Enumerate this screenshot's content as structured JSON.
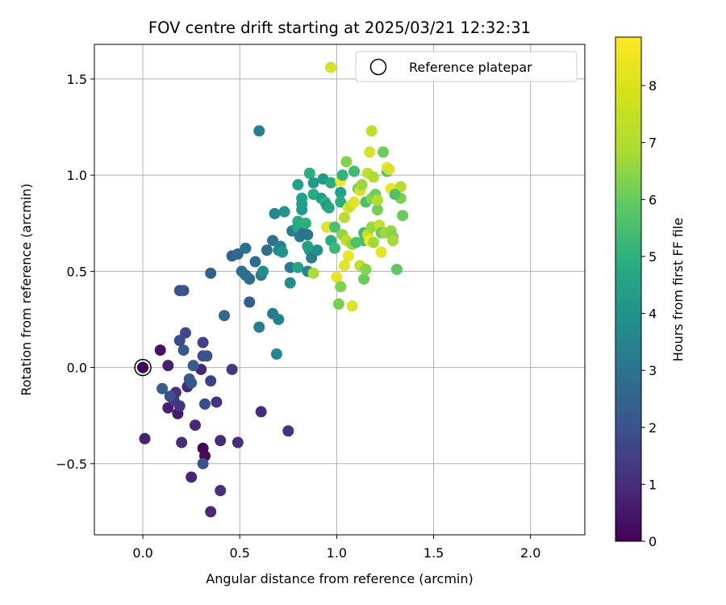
{
  "chart_data": {
    "type": "scatter",
    "title": "FOV centre drift starting at 2025/03/21 12:32:31",
    "xlabel": "Angular distance from reference (arcmin)",
    "ylabel": "Rotation from reference (arcmin)",
    "xlim": [
      -0.25,
      2.28
    ],
    "ylim": [
      -0.87,
      1.68
    ],
    "xticks": [
      0.0,
      0.5,
      1.0,
      1.5,
      2.0
    ],
    "xtick_labels": [
      "0.0",
      "0.5",
      "1.0",
      "1.5",
      "2.0"
    ],
    "yticks": [
      -0.5,
      0.0,
      0.5,
      1.0,
      1.5
    ],
    "ytick_labels": [
      "−0.5",
      "0.0",
      "0.5",
      "1.0",
      "1.5"
    ],
    "grid": true,
    "colormap": "viridis",
    "colorbar": {
      "label": "Hours from first FF file",
      "range": [
        0,
        8.85
      ],
      "ticks": [
        0,
        1,
        2,
        3,
        4,
        5,
        6,
        7,
        8
      ],
      "tick_labels": [
        "0",
        "1",
        "2",
        "3",
        "4",
        "5",
        "6",
        "7",
        "8"
      ]
    },
    "legend": {
      "position": "top-right",
      "entries": [
        {
          "label": "Reference platepar",
          "marker": "open-circle"
        }
      ]
    },
    "reference_point": {
      "x": 0.0,
      "y": 0.0,
      "hours": 0.0
    },
    "points": [
      {
        "x": 0.0,
        "y": 0.0,
        "h": 0.3
      },
      {
        "x": 0.09,
        "y": 0.09,
        "h": 0.4
      },
      {
        "x": 0.13,
        "y": 0.01,
        "h": 0.7
      },
      {
        "x": 0.01,
        "y": -0.37,
        "h": 0.8
      },
      {
        "x": 0.13,
        "y": -0.21,
        "h": 0.7
      },
      {
        "x": 0.18,
        "y": -0.24,
        "h": 0.6
      },
      {
        "x": 0.31,
        "y": -0.42,
        "h": 0.1
      },
      {
        "x": 0.32,
        "y": -0.46,
        "h": 0.2
      },
      {
        "x": 0.25,
        "y": -0.57,
        "h": 0.9
      },
      {
        "x": 0.35,
        "y": -0.75,
        "h": 1.0
      },
      {
        "x": 0.4,
        "y": -0.64,
        "h": 1.2
      },
      {
        "x": 0.2,
        "y": -0.39,
        "h": 1.1
      },
      {
        "x": 0.27,
        "y": -0.3,
        "h": 1.0
      },
      {
        "x": 0.3,
        "y": -0.01,
        "h": 0.9
      },
      {
        "x": 0.23,
        "y": -0.1,
        "h": 1.1
      },
      {
        "x": 0.16,
        "y": -0.17,
        "h": 1.5
      },
      {
        "x": 0.17,
        "y": -0.13,
        "h": 1.3
      },
      {
        "x": 0.19,
        "y": -0.2,
        "h": 1.4
      },
      {
        "x": 0.4,
        "y": -0.38,
        "h": 1.1
      },
      {
        "x": 0.38,
        "y": -0.18,
        "h": 1.3
      },
      {
        "x": 0.49,
        "y": -0.39,
        "h": 1.2
      },
      {
        "x": 0.61,
        "y": -0.23,
        "h": 1.1
      },
      {
        "x": 0.75,
        "y": -0.33,
        "h": 1.3
      },
      {
        "x": 0.46,
        "y": -0.01,
        "h": 1.4
      },
      {
        "x": 0.35,
        "y": -0.07,
        "h": 1.7
      },
      {
        "x": 0.32,
        "y": -0.19,
        "h": 2.1
      },
      {
        "x": 0.31,
        "y": -0.5,
        "h": 2.3
      },
      {
        "x": 0.14,
        "y": -0.15,
        "h": 2.2
      },
      {
        "x": 0.1,
        "y": -0.11,
        "h": 2.6
      },
      {
        "x": 0.24,
        "y": -0.06,
        "h": 2.5
      },
      {
        "x": 0.25,
        "y": -0.08,
        "h": 2.4
      },
      {
        "x": 0.26,
        "y": 0.01,
        "h": 2.6
      },
      {
        "x": 0.31,
        "y": 0.06,
        "h": 2.2
      },
      {
        "x": 0.33,
        "y": 0.06,
        "h": 2.3
      },
      {
        "x": 0.31,
        "y": 0.13,
        "h": 1.8
      },
      {
        "x": 0.21,
        "y": 0.09,
        "h": 2.5
      },
      {
        "x": 0.19,
        "y": 0.14,
        "h": 2.1
      },
      {
        "x": 0.22,
        "y": 0.18,
        "h": 1.9
      },
      {
        "x": 0.19,
        "y": 0.4,
        "h": 2.3
      },
      {
        "x": 0.21,
        "y": 0.4,
        "h": 2.3
      },
      {
        "x": 0.35,
        "y": 0.49,
        "h": 2.8
      },
      {
        "x": 0.42,
        "y": 0.27,
        "h": 3.0
      },
      {
        "x": 0.46,
        "y": 0.58,
        "h": 2.8
      },
      {
        "x": 0.49,
        "y": 0.59,
        "h": 3.0
      },
      {
        "x": 0.51,
        "y": 0.5,
        "h": 3.2
      },
      {
        "x": 0.55,
        "y": 0.46,
        "h": 3.1
      },
      {
        "x": 0.53,
        "y": 0.48,
        "h": 3.1
      },
      {
        "x": 0.55,
        "y": 0.34,
        "h": 2.6
      },
      {
        "x": 0.53,
        "y": 0.62,
        "h": 3.3
      },
      {
        "x": 0.58,
        "y": 0.55,
        "h": 3.1
      },
      {
        "x": 0.61,
        "y": 0.48,
        "h": 3.6
      },
      {
        "x": 0.6,
        "y": 0.21,
        "h": 3.8
      },
      {
        "x": 0.6,
        "y": 1.23,
        "h": 3.8
      },
      {
        "x": 0.62,
        "y": 0.5,
        "h": 4.4
      },
      {
        "x": 0.64,
        "y": 0.61,
        "h": 3.2
      },
      {
        "x": 0.67,
        "y": 0.66,
        "h": 3.4
      },
      {
        "x": 0.67,
        "y": 0.28,
        "h": 3.6
      },
      {
        "x": 0.7,
        "y": 0.25,
        "h": 3.9
      },
      {
        "x": 0.69,
        "y": 0.07,
        "h": 4.1
      },
      {
        "x": 0.68,
        "y": 0.8,
        "h": 4.1
      },
      {
        "x": 0.7,
        "y": 0.61,
        "h": 4.2
      },
      {
        "x": 0.71,
        "y": 0.63,
        "h": 3.9
      },
      {
        "x": 0.72,
        "y": 0.6,
        "h": 4.6
      },
      {
        "x": 0.73,
        "y": 0.81,
        "h": 4.5
      },
      {
        "x": 0.76,
        "y": 0.44,
        "h": 4.3
      },
      {
        "x": 0.76,
        "y": 0.52,
        "h": 3.7
      },
      {
        "x": 0.77,
        "y": 0.71,
        "h": 3.6
      },
      {
        "x": 0.79,
        "y": 0.72,
        "h": 4.0
      },
      {
        "x": 0.8,
        "y": 0.76,
        "h": 5.5
      },
      {
        "x": 0.8,
        "y": 0.73,
        "h": 5.4
      },
      {
        "x": 0.8,
        "y": 0.52,
        "h": 5.2
      },
      {
        "x": 0.81,
        "y": 0.68,
        "h": 3.6
      },
      {
        "x": 0.8,
        "y": 0.95,
        "h": 5.1
      },
      {
        "x": 0.82,
        "y": 0.88,
        "h": 5.0
      },
      {
        "x": 0.82,
        "y": 0.85,
        "h": 4.9
      },
      {
        "x": 0.82,
        "y": 0.82,
        "h": 4.8
      },
      {
        "x": 0.83,
        "y": 0.7,
        "h": 3.4
      },
      {
        "x": 0.84,
        "y": 0.75,
        "h": 5.6
      },
      {
        "x": 0.85,
        "y": 0.69,
        "h": 3.5
      },
      {
        "x": 0.85,
        "y": 0.63,
        "h": 4.9
      },
      {
        "x": 0.85,
        "y": 0.5,
        "h": 4.0
      },
      {
        "x": 0.86,
        "y": 1.01,
        "h": 5.5
      },
      {
        "x": 0.86,
        "y": 0.61,
        "h": 5.0
      },
      {
        "x": 0.87,
        "y": 0.57,
        "h": 3.8
      },
      {
        "x": 0.88,
        "y": 0.49,
        "h": 7.7
      },
      {
        "x": 0.88,
        "y": 0.9,
        "h": 5.3
      },
      {
        "x": 0.88,
        "y": 0.96,
        "h": 4.8
      },
      {
        "x": 0.9,
        "y": 0.61,
        "h": 4.4
      },
      {
        "x": 0.92,
        "y": 0.88,
        "h": 4.9
      },
      {
        "x": 0.93,
        "y": 0.98,
        "h": 4.7
      },
      {
        "x": 0.94,
        "y": 0.86,
        "h": 5.6
      },
      {
        "x": 0.95,
        "y": 0.73,
        "h": 8.2
      },
      {
        "x": 0.96,
        "y": 0.73,
        "h": 8.5
      },
      {
        "x": 0.95,
        "y": 0.84,
        "h": 4.6
      },
      {
        "x": 0.97,
        "y": 0.66,
        "h": 5.5
      },
      {
        "x": 0.97,
        "y": 0.96,
        "h": 5.4
      },
      {
        "x": 0.96,
        "y": 0.83,
        "h": 5.2
      },
      {
        "x": 0.97,
        "y": 1.56,
        "h": 8.3
      },
      {
        "x": 0.99,
        "y": 0.62,
        "h": 6.0
      },
      {
        "x": 0.99,
        "y": 0.73,
        "h": 6.3
      },
      {
        "x": 1.0,
        "y": 0.47,
        "h": 8.6
      },
      {
        "x": 1.01,
        "y": 0.33,
        "h": 7.0
      },
      {
        "x": 1.02,
        "y": 0.42,
        "h": 7.1
      },
      {
        "x": 1.02,
        "y": 0.97,
        "h": 8.7
      },
      {
        "x": 1.02,
        "y": 0.91,
        "h": 5.0
      },
      {
        "x": 1.02,
        "y": 0.86,
        "h": 5.5
      },
      {
        "x": 1.03,
        "y": 1.0,
        "h": 5.8
      },
      {
        "x": 1.03,
        "y": 0.69,
        "h": 7.4
      },
      {
        "x": 1.04,
        "y": 0.78,
        "h": 7.9
      },
      {
        "x": 1.04,
        "y": 0.53,
        "h": 8.5
      },
      {
        "x": 1.05,
        "y": 1.07,
        "h": 7.2
      },
      {
        "x": 1.05,
        "y": 0.66,
        "h": 8.0
      },
      {
        "x": 1.06,
        "y": 0.58,
        "h": 8.6
      },
      {
        "x": 1.06,
        "y": 0.83,
        "h": 8.6
      },
      {
        "x": 1.07,
        "y": 0.84,
        "h": 8.1
      },
      {
        "x": 1.08,
        "y": 0.32,
        "h": 8.4
      },
      {
        "x": 1.08,
        "y": 0.64,
        "h": 7.5
      },
      {
        "x": 1.09,
        "y": 1.02,
        "h": 6.1
      },
      {
        "x": 1.09,
        "y": 0.86,
        "h": 8.5
      },
      {
        "x": 1.1,
        "y": 0.65,
        "h": 6.4
      },
      {
        "x": 1.11,
        "y": 0.93,
        "h": 6.9
      },
      {
        "x": 1.12,
        "y": 0.53,
        "h": 8.0
      },
      {
        "x": 1.12,
        "y": 0.92,
        "h": 8.3
      },
      {
        "x": 1.13,
        "y": 0.95,
        "h": 7.5
      },
      {
        "x": 1.14,
        "y": 0.46,
        "h": 6.8
      },
      {
        "x": 1.14,
        "y": 0.66,
        "h": 6.2
      },
      {
        "x": 1.14,
        "y": 0.7,
        "h": 6.2
      },
      {
        "x": 1.15,
        "y": 0.51,
        "h": 7.2
      },
      {
        "x": 1.15,
        "y": 0.86,
        "h": 6.3
      },
      {
        "x": 1.16,
        "y": 1.01,
        "h": 8.0
      },
      {
        "x": 1.16,
        "y": 0.69,
        "h": 8.2
      },
      {
        "x": 1.17,
        "y": 1.12,
        "h": 8.3
      },
      {
        "x": 1.17,
        "y": 0.66,
        "h": 8.8
      },
      {
        "x": 1.18,
        "y": 1.23,
        "h": 8.0
      },
      {
        "x": 1.18,
        "y": 0.73,
        "h": 7.5
      },
      {
        "x": 1.18,
        "y": 0.88,
        "h": 7.3
      },
      {
        "x": 1.19,
        "y": 0.99,
        "h": 7.8
      },
      {
        "x": 1.19,
        "y": 0.65,
        "h": 7.6
      },
      {
        "x": 1.2,
        "y": 0.9,
        "h": 6.9
      },
      {
        "x": 1.21,
        "y": 0.82,
        "h": 7.0
      },
      {
        "x": 1.21,
        "y": 0.87,
        "h": 7.8
      },
      {
        "x": 1.22,
        "y": 0.74,
        "h": 8.1
      },
      {
        "x": 1.23,
        "y": 0.6,
        "h": 8.5
      },
      {
        "x": 1.23,
        "y": 0.7,
        "h": 6.8
      },
      {
        "x": 1.24,
        "y": 1.12,
        "h": 6.9
      },
      {
        "x": 1.25,
        "y": 0.7,
        "h": 7.6
      },
      {
        "x": 1.26,
        "y": 1.02,
        "h": 6.3
      },
      {
        "x": 1.26,
        "y": 1.04,
        "h": 8.7
      },
      {
        "x": 1.27,
        "y": 1.03,
        "h": 8.3
      },
      {
        "x": 1.28,
        "y": 0.93,
        "h": 8.6
      },
      {
        "x": 1.28,
        "y": 0.71,
        "h": 7.4
      },
      {
        "x": 1.29,
        "y": 0.68,
        "h": 7.2
      },
      {
        "x": 1.29,
        "y": 0.66,
        "h": 7.7
      },
      {
        "x": 1.31,
        "y": 0.51,
        "h": 6.6
      },
      {
        "x": 1.33,
        "y": 0.94,
        "h": 7.9
      },
      {
        "x": 1.33,
        "y": 0.88,
        "h": 7.1
      },
      {
        "x": 1.34,
        "y": 0.79,
        "h": 6.8
      },
      {
        "x": 1.3,
        "y": 0.9,
        "h": 6.4
      }
    ]
  }
}
